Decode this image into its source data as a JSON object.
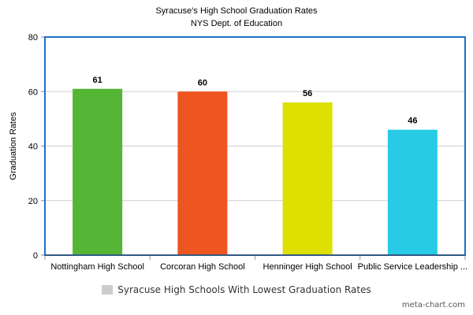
{
  "chart_data": {
    "type": "bar",
    "title": "Syracuse's High School Graduation Rates",
    "subtitle": "NYS Dept. of Education",
    "ylabel": "Graduation Rates",
    "xlabel": "",
    "ylim": [
      0,
      80
    ],
    "yticks": [
      0,
      20,
      40,
      60,
      80
    ],
    "grid": true,
    "categories": [
      "Nottingham High School",
      "Corcoran High School",
      "Henninger High School",
      "Public Service Leadership ..."
    ],
    "values": [
      61,
      60,
      56,
      46
    ],
    "data_labels": [
      "61",
      "60",
      "56",
      "46"
    ],
    "colors": [
      "#55b534",
      "#ee5520",
      "#dde000",
      "#27cbe6"
    ],
    "frame_color": "#1f6fc5",
    "legend": {
      "label": "Syracuse High Schools With Lowest Graduation Rates",
      "color": "#cccccc",
      "placement": "bottom"
    }
  },
  "watermark": "meta-chart.com"
}
